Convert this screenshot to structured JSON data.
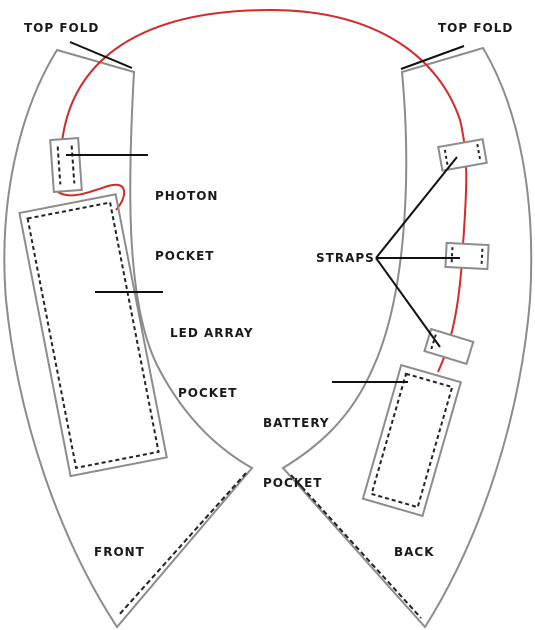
{
  "labels": {
    "top_fold_left": "TOP FOLD",
    "top_fold_right": "TOP FOLD",
    "photon_pocket": {
      "line1": "PHOTON",
      "line2": "POCKET"
    },
    "led_array_pocket": {
      "line1": "LED ARRAY",
      "line2": "POCKET"
    },
    "straps": "STRAPS",
    "battery_pocket": {
      "line1": "BATTERY",
      "line2": "POCKET"
    },
    "front": "FRONT",
    "back": "BACK"
  },
  "colors": {
    "outline": "#8c8c8c",
    "stitch": "#222222",
    "wire": "#d42a2a",
    "leader": "#111111"
  }
}
